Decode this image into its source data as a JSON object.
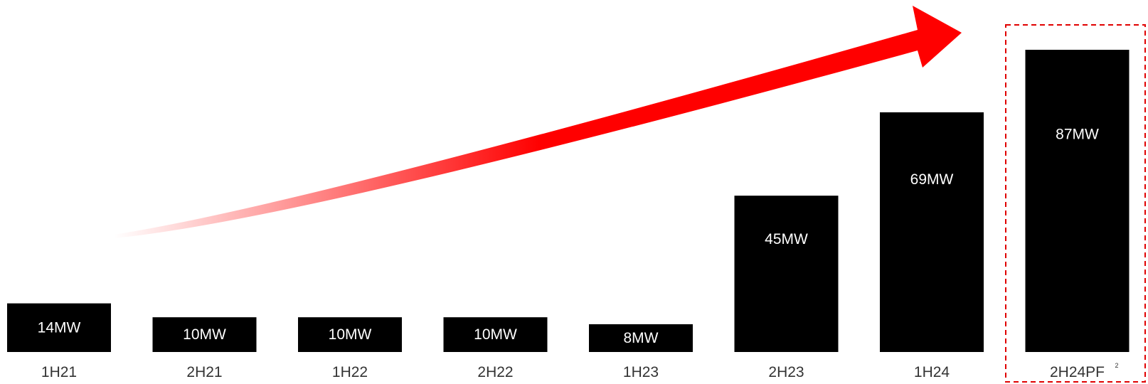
{
  "chart_data": {
    "type": "bar",
    "categories": [
      "1H21",
      "2H21",
      "1H22",
      "2H22",
      "1H23",
      "2H23",
      "1H24",
      "2H24PF"
    ],
    "values": [
      14,
      10,
      10,
      10,
      8,
      45,
      69,
      87
    ],
    "data_labels": [
      "14MW",
      "10MW",
      "10MW",
      "10MW",
      "8MW",
      "45MW",
      "69MW",
      "87MW"
    ],
    "unit": "MW",
    "highlighted_category": "2H24PF",
    "highlight_footnote": "2",
    "trend_arrow": true,
    "title": "",
    "xlabel": "",
    "ylabel": "",
    "grid": false,
    "colors": {
      "bar": "#000000",
      "bar_label": "#ffffff",
      "category_label": "#333333",
      "arrow": "#ff0000",
      "highlight_border": "#e00000"
    }
  }
}
